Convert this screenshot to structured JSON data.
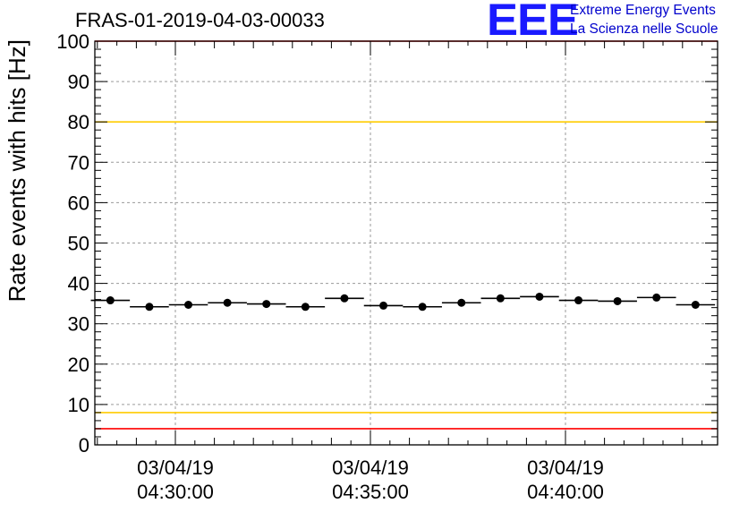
{
  "chart_data": {
    "type": "scatter",
    "title": "FRAS-01-2019-04-03-00033",
    "ylabel": "Rate events with hits [Hz]",
    "xlabel": "",
    "ylim": [
      0,
      100
    ],
    "yticks": [
      0,
      10,
      20,
      30,
      40,
      50,
      60,
      70,
      80,
      90,
      100
    ],
    "x_tick_labels": [
      {
        "date": "03/04/19",
        "time": "04:30:00"
      },
      {
        "date": "03/04/19",
        "time": "04:35:00"
      },
      {
        "date": "03/04/19",
        "time": "04:40:00"
      }
    ],
    "grid": true,
    "thresholds": [
      {
        "value": 100,
        "color": "#ff0000"
      },
      {
        "value": 80,
        "color": "#ffcc00"
      },
      {
        "value": 8,
        "color": "#ffcc00"
      },
      {
        "value": 4,
        "color": "#ff0000"
      }
    ],
    "series": [
      {
        "x": [
          "04:28:20",
          "04:29:20",
          "04:30:20",
          "04:31:20",
          "04:32:20",
          "04:33:20",
          "04:34:20",
          "04:35:20",
          "04:36:20",
          "04:37:20",
          "04:38:20",
          "04:39:20",
          "04:40:20",
          "04:41:20",
          "04:42:20",
          "04:43:20"
        ],
        "y": [
          35.8,
          34.2,
          34.7,
          35.2,
          34.9,
          34.2,
          36.3,
          34.5,
          34.2,
          35.2,
          36.3,
          36.7,
          35.8,
          35.6,
          36.5,
          34.7
        ],
        "color": "#000000"
      }
    ]
  },
  "logo": {
    "mark": "EEE",
    "line1": "Extreme Energy Events",
    "line2": "La Scienza nelle Scuole"
  }
}
